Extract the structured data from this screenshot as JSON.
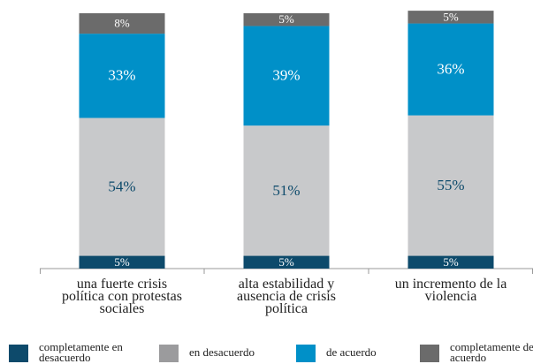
{
  "chart_data": {
    "type": "stacked_bar",
    "categories": [
      "una fuerte crisis política con protestas sociales",
      "alta estabilidad y ausencia de crisis política",
      "un incremento de la violencia"
    ],
    "series": [
      {
        "name": "completamente en desacuerdo",
        "color": "#0d4a6b",
        "values": [
          5,
          5,
          5
        ],
        "value_labels": [
          "5%",
          "5%",
          "5%"
        ]
      },
      {
        "name": "en desacuerdo",
        "color": "#c8c9cb",
        "values": [
          54,
          51,
          55
        ],
        "value_labels": [
          "54%",
          "51%",
          "55%"
        ]
      },
      {
        "name": "de acuerdo",
        "color": "#0090c8",
        "values": [
          33,
          39,
          36
        ],
        "value_labels": [
          "33%",
          "39%",
          "36%"
        ]
      },
      {
        "name": "completamente de acuerdo",
        "color": "#6b6b6b",
        "values": [
          8,
          5,
          5
        ],
        "value_labels": [
          "8%",
          "5%",
          "5%"
        ]
      }
    ],
    "ylim": [
      0,
      100
    ]
  }
}
